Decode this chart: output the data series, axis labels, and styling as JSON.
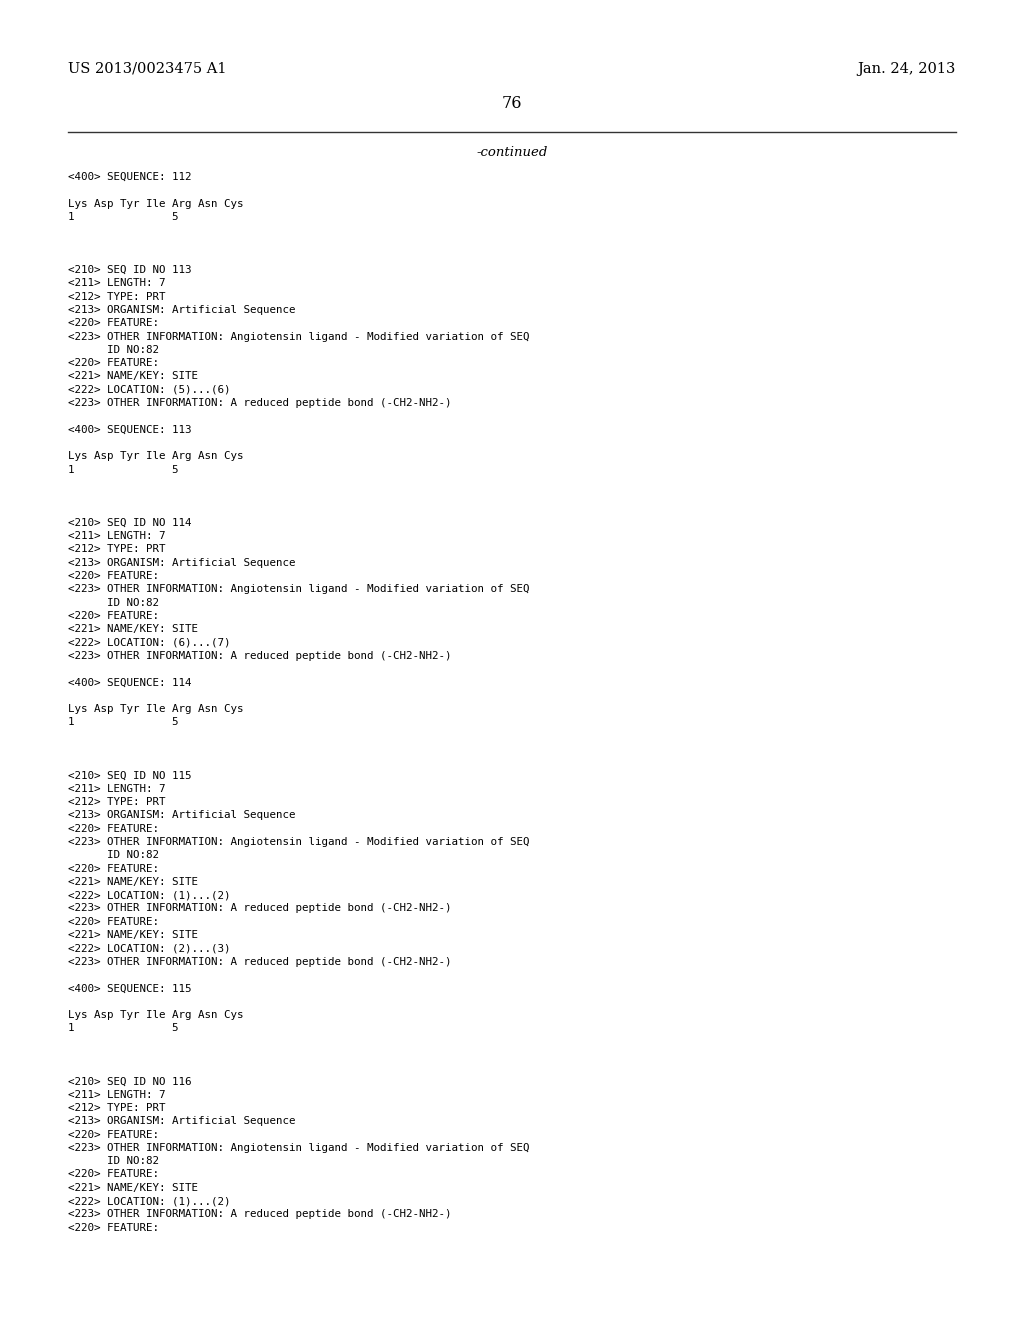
{
  "header_left": "US 2013/0023475 A1",
  "header_right": "Jan. 24, 2013",
  "page_number": "76",
  "continued_label": "-continued",
  "background_color": "#ffffff",
  "text_color": "#000000",
  "monospace_font": "DejaVu Sans Mono",
  "serif_font": "DejaVu Serif",
  "header_fontsize": 10.5,
  "page_fontsize": 11.5,
  "continued_fontsize": 9.5,
  "body_fontsize": 7.8,
  "lines": [
    "<400> SEQUENCE: 112",
    "",
    "Lys Asp Tyr Ile Arg Asn Cys",
    "1               5",
    "",
    "",
    "",
    "<210> SEQ ID NO 113",
    "<211> LENGTH: 7",
    "<212> TYPE: PRT",
    "<213> ORGANISM: Artificial Sequence",
    "<220> FEATURE:",
    "<223> OTHER INFORMATION: Angiotensin ligand - Modified variation of SEQ",
    "      ID NO:82",
    "<220> FEATURE:",
    "<221> NAME/KEY: SITE",
    "<222> LOCATION: (5)...(6)",
    "<223> OTHER INFORMATION: A reduced peptide bond (-CH2-NH2-)",
    "",
    "<400> SEQUENCE: 113",
    "",
    "Lys Asp Tyr Ile Arg Asn Cys",
    "1               5",
    "",
    "",
    "",
    "<210> SEQ ID NO 114",
    "<211> LENGTH: 7",
    "<212> TYPE: PRT",
    "<213> ORGANISM: Artificial Sequence",
    "<220> FEATURE:",
    "<223> OTHER INFORMATION: Angiotensin ligand - Modified variation of SEQ",
    "      ID NO:82",
    "<220> FEATURE:",
    "<221> NAME/KEY: SITE",
    "<222> LOCATION: (6)...(7)",
    "<223> OTHER INFORMATION: A reduced peptide bond (-CH2-NH2-)",
    "",
    "<400> SEQUENCE: 114",
    "",
    "Lys Asp Tyr Ile Arg Asn Cys",
    "1               5",
    "",
    "",
    "",
    "<210> SEQ ID NO 115",
    "<211> LENGTH: 7",
    "<212> TYPE: PRT",
    "<213> ORGANISM: Artificial Sequence",
    "<220> FEATURE:",
    "<223> OTHER INFORMATION: Angiotensin ligand - Modified variation of SEQ",
    "      ID NO:82",
    "<220> FEATURE:",
    "<221> NAME/KEY: SITE",
    "<222> LOCATION: (1)...(2)",
    "<223> OTHER INFORMATION: A reduced peptide bond (-CH2-NH2-)",
    "<220> FEATURE:",
    "<221> NAME/KEY: SITE",
    "<222> LOCATION: (2)...(3)",
    "<223> OTHER INFORMATION: A reduced peptide bond (-CH2-NH2-)",
    "",
    "<400> SEQUENCE: 115",
    "",
    "Lys Asp Tyr Ile Arg Asn Cys",
    "1               5",
    "",
    "",
    "",
    "<210> SEQ ID NO 116",
    "<211> LENGTH: 7",
    "<212> TYPE: PRT",
    "<213> ORGANISM: Artificial Sequence",
    "<220> FEATURE:",
    "<223> OTHER INFORMATION: Angiotensin ligand - Modified variation of SEQ",
    "      ID NO:82",
    "<220> FEATURE:",
    "<221> NAME/KEY: SITE",
    "<222> LOCATION: (1)...(2)",
    "<223> OTHER INFORMATION: A reduced peptide bond (-CH2-NH2-)",
    "<220> FEATURE:"
  ]
}
